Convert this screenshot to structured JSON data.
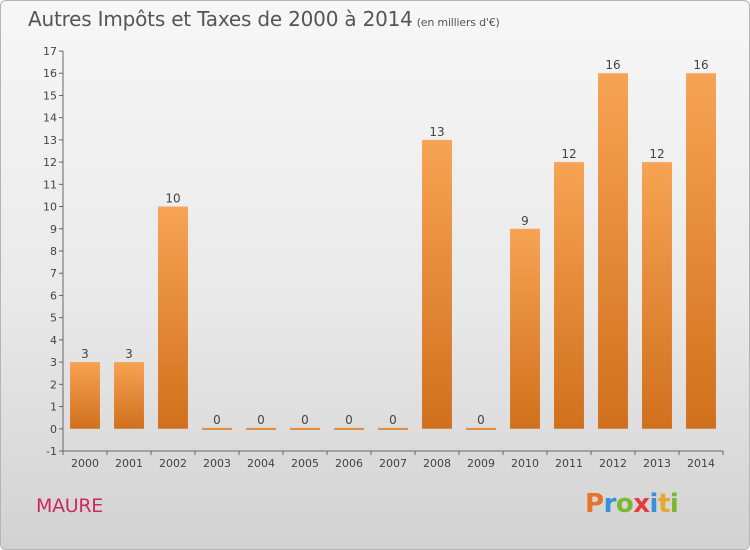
{
  "title": "Autres Impôts et Taxes de 2000 à 2014",
  "unit_note": "(en milliers d'€)",
  "commune": "MAURE",
  "logo": {
    "text": "Proxiti",
    "letters": [
      {
        "ch": "P",
        "color": "#e8732a"
      },
      {
        "ch": "r",
        "color": "#3a8fd6"
      },
      {
        "ch": "o",
        "color": "#7ab830"
      },
      {
        "ch": "x",
        "color": "#e23d3d"
      },
      {
        "ch": "i",
        "color": "#3a8fd6"
      },
      {
        "ch": "t",
        "color": "#e8a72a"
      },
      {
        "ch": "i",
        "color": "#7ab830"
      }
    ]
  },
  "chart_data": {
    "type": "bar",
    "categories": [
      "2000",
      "2001",
      "2002",
      "2003",
      "2004",
      "2005",
      "2006",
      "2007",
      "2008",
      "2009",
      "2010",
      "2011",
      "2012",
      "2013",
      "2014"
    ],
    "values": [
      3,
      3,
      10,
      0,
      0,
      0,
      0,
      0,
      13,
      0,
      9,
      12,
      16,
      12,
      16
    ],
    "data_labels": [
      "3",
      "3",
      "10",
      "0",
      "0",
      "0",
      "0",
      "0",
      "13",
      "0",
      "9",
      "12",
      "16",
      "12",
      "16"
    ],
    "ylim": [
      -1,
      17
    ],
    "yticks": [
      -1,
      0,
      1,
      2,
      3,
      4,
      5,
      6,
      7,
      8,
      9,
      10,
      11,
      12,
      13,
      14,
      15,
      16,
      17
    ],
    "xlabel": "",
    "ylabel": "",
    "grid": false,
    "bar_color_top": "#f7a354",
    "bar_color_bottom": "#d0701d",
    "legend": "none"
  }
}
